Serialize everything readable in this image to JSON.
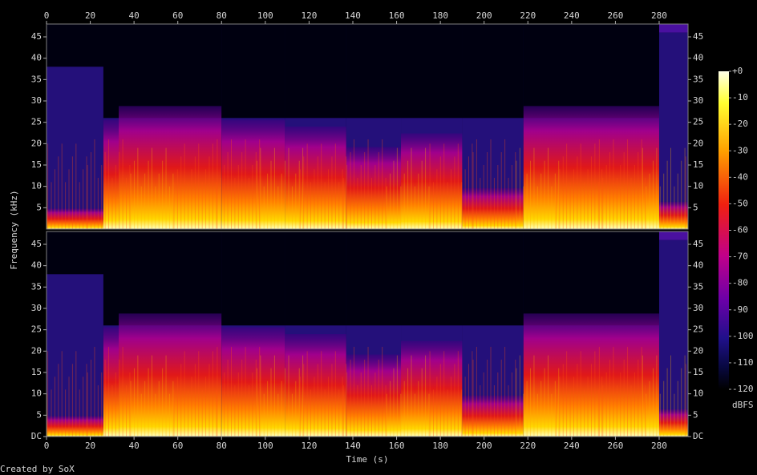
{
  "chart_data": {
    "type": "spectrogram",
    "x_label": "Time (s)",
    "y_label": "Frequency (kHz)",
    "xlim": [
      0,
      293.2
    ],
    "xticks": [
      0,
      20,
      40,
      60,
      80,
      100,
      120,
      140,
      160,
      180,
      200,
      220,
      240,
      260,
      280
    ],
    "ylim": [
      0,
      48
    ],
    "channels": [
      {
        "yticks": [
          5,
          10,
          15,
          20,
          25,
          30,
          35,
          40,
          45
        ]
      },
      {
        "yticks": [
          {
            "value": 0,
            "label": "DC"
          },
          5,
          10,
          15,
          20,
          25,
          30,
          35,
          40,
          45
        ]
      }
    ],
    "colorbar": {
      "label": "dBFS",
      "lim": [
        -120,
        0
      ],
      "ticks": [
        {
          "value": 0,
          "label": "+0"
        },
        -10,
        -20,
        -30,
        -40,
        -50,
        -60,
        -70,
        -80,
        -90,
        -100,
        -110,
        -120
      ]
    },
    "credit": "Created by SoX"
  }
}
